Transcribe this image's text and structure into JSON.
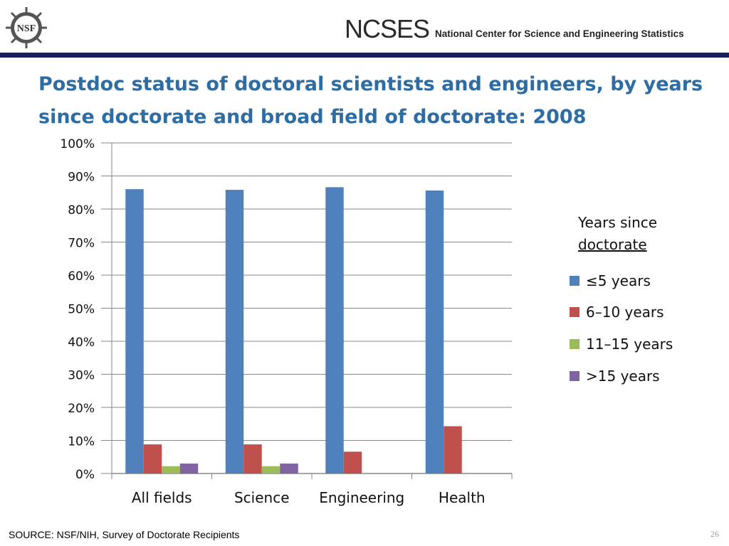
{
  "header": {
    "logo_text": "NSF",
    "org_acronym": "NCSES",
    "org_full_name": "National Center for Science and Engineering Statistics",
    "accent_color": "#1a1f5c"
  },
  "slide": {
    "title": "Postdoc status of doctoral scientists and engineers, by years since doctorate and broad field of doctorate:  2008",
    "source": "SOURCE:  NSF/NIH, Survey of Doctorate Recipients",
    "page_number": "26"
  },
  "legend": {
    "title_line1": "Years since",
    "title_line2": "doctorate",
    "placement": "right"
  },
  "chart_data": {
    "type": "bar",
    "title": "Postdoc status of doctoral scientists and engineers, by years since doctorate and broad field of doctorate:  2008",
    "xlabel": "",
    "ylabel": "",
    "categories": [
      "All fields",
      "Science",
      "Engineering",
      "Health"
    ],
    "series": [
      {
        "name": "≤5 years",
        "color": "#4f81bd",
        "values": [
          86.0,
          85.8,
          86.6,
          85.6
        ]
      },
      {
        "name": "6–10 years",
        "color": "#c0504d",
        "values": [
          8.8,
          8.8,
          6.6,
          14.3
        ]
      },
      {
        "name": "11–15 years",
        "color": "#9bbb59",
        "values": [
          2.2,
          2.2,
          null,
          null
        ]
      },
      {
        "name": ">15 years",
        "color": "#8064a2",
        "values": [
          3.0,
          3.0,
          null,
          null
        ]
      }
    ],
    "ylim": [
      0,
      100
    ],
    "yticks": [
      0,
      10,
      20,
      30,
      40,
      50,
      60,
      70,
      80,
      90,
      100
    ],
    "ytick_labels": [
      "0%",
      "10%",
      "20%",
      "30%",
      "40%",
      "50%",
      "60%",
      "70%",
      "80%",
      "90%",
      "100%"
    ],
    "grid": true
  }
}
